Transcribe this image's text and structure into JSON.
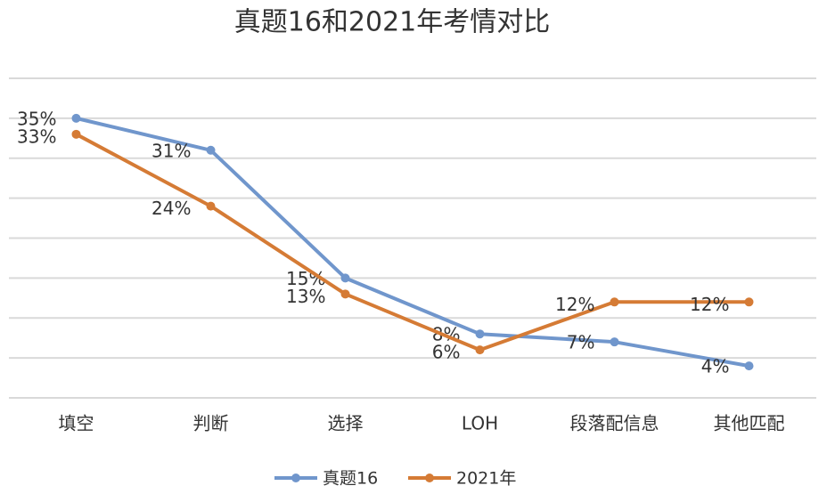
{
  "chart_data": {
    "type": "line",
    "title": "真题16和2021年考情对比",
    "categories": [
      "填空",
      "判断",
      "选择",
      "LOH",
      "段落配信息",
      "其他匹配"
    ],
    "series": [
      {
        "name": "真题16",
        "color": "#7096cc",
        "values": [
          35,
          31,
          15,
          8,
          7,
          4
        ],
        "value_labels": [
          "35%",
          "31%",
          "15%",
          "8%",
          "7%",
          "4%"
        ]
      },
      {
        "name": "2021年",
        "color": "#d57b35",
        "values": [
          33,
          24,
          13,
          6,
          12,
          12
        ],
        "value_labels": [
          "33%",
          "24%",
          "13%",
          "6%",
          "12%",
          "12%"
        ]
      }
    ],
    "ylim": [
      0,
      40
    ],
    "yticks": [
      0,
      5,
      10,
      15,
      20,
      25,
      30,
      35,
      40
    ],
    "grid": true
  }
}
